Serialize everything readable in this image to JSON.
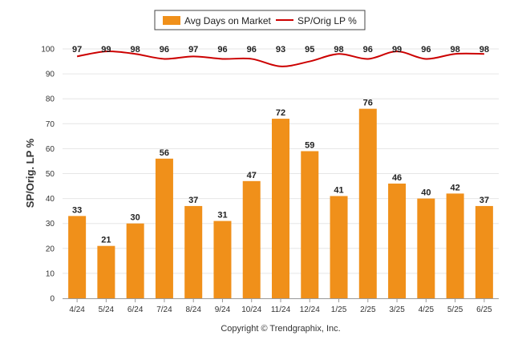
{
  "chart_data": {
    "type": "bar",
    "categories": [
      "4/24",
      "5/24",
      "6/24",
      "7/24",
      "8/24",
      "9/24",
      "10/24",
      "11/24",
      "12/24",
      "1/25",
      "2/25",
      "3/25",
      "4/25",
      "5/25",
      "6/25"
    ],
    "series": [
      {
        "name": "Avg Days on Market",
        "type": "bar",
        "color": "#f0901a",
        "values": [
          33,
          21,
          30,
          56,
          37,
          31,
          47,
          72,
          59,
          41,
          76,
          46,
          40,
          42,
          37
        ]
      },
      {
        "name": "SP/Orig LP %",
        "type": "line",
        "color": "#cc0000",
        "values": [
          97,
          99,
          98,
          96,
          97,
          96,
          96,
          93,
          95,
          98,
          96,
          99,
          96,
          98,
          98
        ]
      }
    ],
    "ylabel": "SP/Orig. LP %",
    "ylim": [
      0,
      100
    ],
    "yticks": [
      0,
      10,
      20,
      30,
      40,
      50,
      60,
      70,
      80,
      90,
      100
    ],
    "grid": true,
    "legend_position": "top-center"
  },
  "footer": {
    "copyright": "Copyright © Trendgraphix, Inc."
  }
}
